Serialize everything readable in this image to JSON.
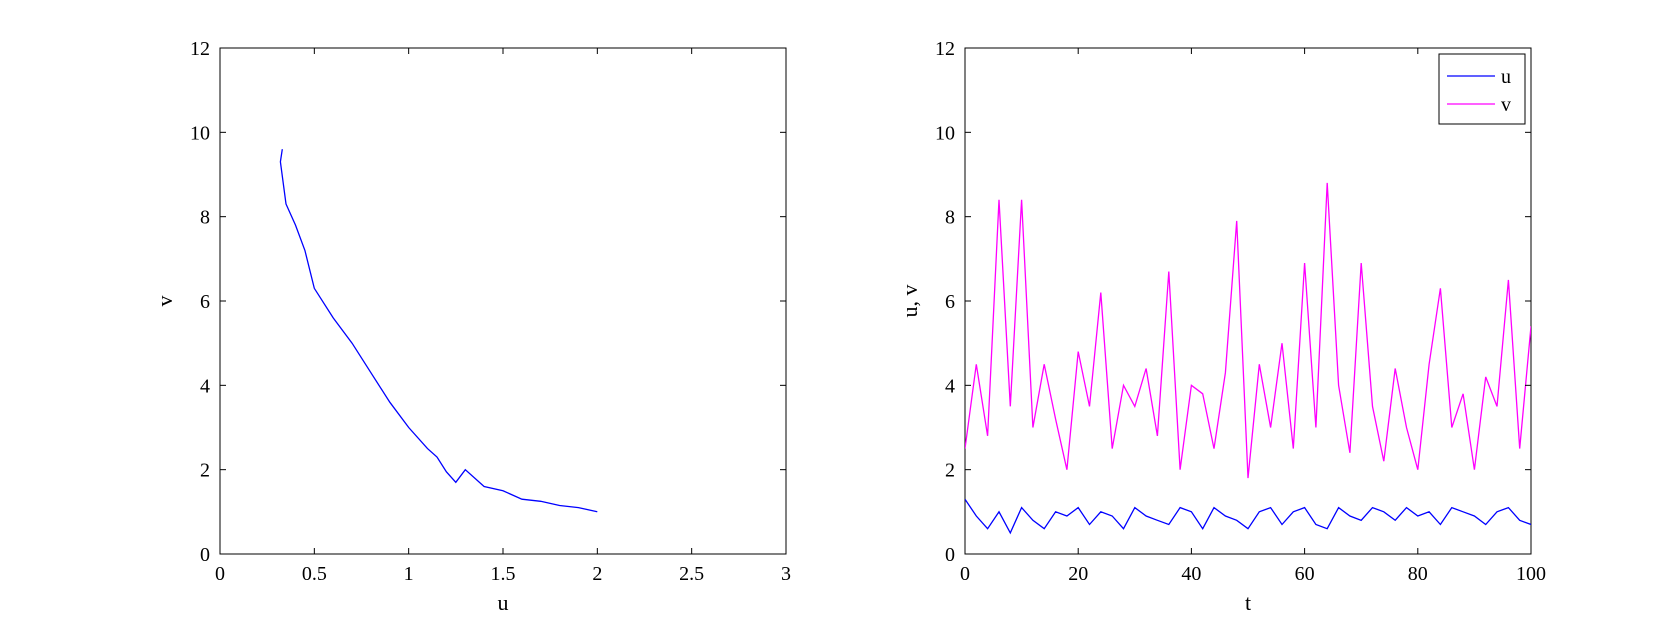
{
  "chart_data": [
    {
      "type": "line",
      "title": "",
      "xlabel": "u",
      "ylabel": "v",
      "xlim": [
        0,
        3
      ],
      "ylim": [
        0,
        12
      ],
      "xticks": [
        0,
        0.5,
        1,
        1.5,
        2,
        2.5,
        3
      ],
      "yticks": [
        0,
        2,
        4,
        6,
        8,
        10,
        12
      ],
      "grid": false,
      "series": [
        {
          "color": "#0000ff",
          "points": [
            [
              2.0,
              1.0
            ],
            [
              1.9,
              1.1
            ],
            [
              1.8,
              1.15
            ],
            [
              1.7,
              1.25
            ],
            [
              1.6,
              1.3
            ],
            [
              1.5,
              1.5
            ],
            [
              1.4,
              1.6
            ],
            [
              1.3,
              2.0
            ],
            [
              1.25,
              1.7
            ],
            [
              1.2,
              1.95
            ],
            [
              1.15,
              2.3
            ],
            [
              1.1,
              2.5
            ],
            [
              1.0,
              3.0
            ],
            [
              0.9,
              3.6
            ],
            [
              0.8,
              4.3
            ],
            [
              0.7,
              5.0
            ],
            [
              0.6,
              5.6
            ],
            [
              0.5,
              6.3
            ],
            [
              0.45,
              7.2
            ],
            [
              0.4,
              7.8
            ],
            [
              0.35,
              8.3
            ],
            [
              0.32,
              9.3
            ],
            [
              0.33,
              9.6
            ]
          ]
        }
      ]
    },
    {
      "type": "line",
      "title": "",
      "xlabel": "t",
      "ylabel": "u, v",
      "xlim": [
        0,
        100
      ],
      "ylim": [
        0,
        12
      ],
      "xticks": [
        0,
        20,
        40,
        60,
        80,
        100
      ],
      "yticks": [
        0,
        2,
        4,
        6,
        8,
        10,
        12
      ],
      "grid": false,
      "legend_position": "top-right",
      "series": [
        {
          "name": "u",
          "color": "#0000ff",
          "x": [
            0,
            2,
            4,
            6,
            8,
            10,
            12,
            14,
            16,
            18,
            20,
            22,
            24,
            26,
            28,
            30,
            32,
            34,
            36,
            38,
            40,
            42,
            44,
            46,
            48,
            50,
            52,
            54,
            56,
            58,
            60,
            62,
            64,
            66,
            68,
            70,
            72,
            74,
            76,
            78,
            80,
            82,
            84,
            86,
            88,
            90,
            92,
            94,
            96,
            98,
            100
          ],
          "values": [
            1.3,
            0.9,
            0.6,
            1.0,
            0.5,
            1.1,
            0.8,
            0.6,
            1.0,
            0.9,
            1.1,
            0.7,
            1.0,
            0.9,
            0.6,
            1.1,
            0.9,
            0.8,
            0.7,
            1.1,
            1.0,
            0.6,
            1.1,
            0.9,
            0.8,
            0.6,
            1.0,
            1.1,
            0.7,
            1.0,
            1.1,
            0.7,
            0.6,
            1.1,
            0.9,
            0.8,
            1.1,
            1.0,
            0.8,
            1.1,
            0.9,
            1.0,
            0.7,
            1.1,
            1.0,
            0.9,
            0.7,
            1.0,
            1.1,
            0.8,
            0.7
          ]
        },
        {
          "name": "v",
          "color": "#ff00ff",
          "x": [
            0,
            2,
            4,
            6,
            8,
            10,
            12,
            14,
            16,
            18,
            20,
            22,
            24,
            26,
            28,
            30,
            32,
            34,
            36,
            38,
            40,
            42,
            44,
            46,
            48,
            50,
            52,
            54,
            56,
            58,
            60,
            62,
            64,
            66,
            68,
            70,
            72,
            74,
            76,
            78,
            80,
            82,
            84,
            86,
            88,
            90,
            92,
            94,
            96,
            98,
            100
          ],
          "values": [
            2.5,
            4.5,
            2.8,
            8.4,
            3.5,
            8.4,
            3.0,
            4.5,
            3.2,
            2.0,
            4.8,
            3.5,
            6.2,
            2.5,
            4.0,
            3.5,
            4.4,
            2.8,
            6.7,
            2.0,
            4.0,
            3.8,
            2.5,
            4.3,
            7.9,
            1.8,
            4.5,
            3.0,
            5.0,
            2.5,
            6.9,
            3.0,
            8.8,
            4.0,
            2.4,
            6.9,
            3.5,
            2.2,
            4.4,
            3.0,
            2.0,
            4.5,
            6.3,
            3.0,
            3.8,
            2.0,
            4.2,
            3.5,
            6.5,
            2.5,
            5.4
          ]
        }
      ]
    }
  ]
}
